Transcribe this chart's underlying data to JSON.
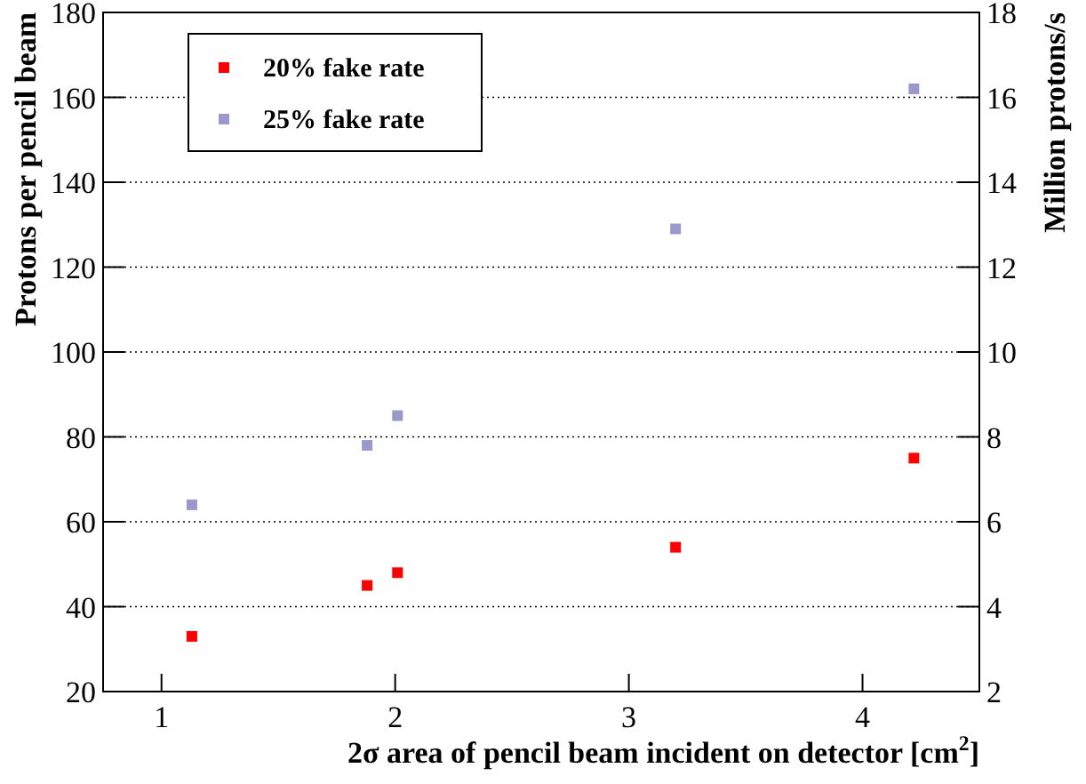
{
  "chart_data": {
    "type": "scatter",
    "xlabel": "2σ area of pencil beam incident on detector [cm$^{2}$]",
    "ylabel": "Protons per pencil beam",
    "y2label": "Million protons/s",
    "x": [
      1.13,
      1.88,
      2.01,
      3.2,
      4.22
    ],
    "series": [
      {
        "name": "20% fake rate",
        "color": "#ff0000",
        "values": [
          33,
          45,
          48,
          54,
          75
        ]
      },
      {
        "name": "25% fake rate",
        "color": "#9999cc",
        "values": [
          64,
          78,
          85,
          129,
          162
        ]
      }
    ],
    "xlim": [
      0.75,
      4.5
    ],
    "xticks": [
      1,
      2,
      3,
      4
    ],
    "ylim": [
      20,
      180
    ],
    "yticks": [
      20,
      40,
      60,
      80,
      100,
      120,
      140,
      160,
      180
    ],
    "y2lim": [
      2,
      18
    ],
    "y2ticks": [
      2,
      4,
      6,
      8,
      10,
      12,
      14,
      16,
      18
    ],
    "grid": "y",
    "legend": "top left",
    "marker": "square"
  }
}
